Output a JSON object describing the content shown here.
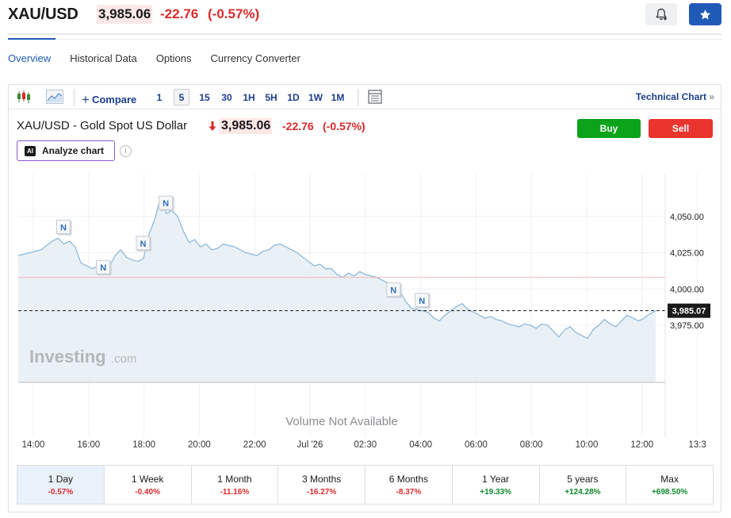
{
  "header": {
    "symbol": "XAU/USD",
    "price": "3,985.06",
    "change": "-22.76",
    "change_pct": "(-0.57%)",
    "alert_icon": "bell-plus-icon",
    "watchlist_icon": "star-icon"
  },
  "tabs": [
    {
      "label": "Overview"
    },
    {
      "label": "Historical Data"
    },
    {
      "label": "Options"
    },
    {
      "label": "Currency Converter"
    }
  ],
  "toolbar": {
    "compare_label": "Compare",
    "timeframes": [
      {
        "label": "1"
      },
      {
        "label": "5"
      },
      {
        "label": "15"
      },
      {
        "label": "30"
      },
      {
        "label": "1H"
      },
      {
        "label": "5H"
      },
      {
        "label": "1D"
      },
      {
        "label": "1W"
      },
      {
        "label": "1M"
      }
    ],
    "active_timeframe": "5",
    "technical_chart_label": "Technical Chart"
  },
  "instrument": {
    "title": "XAU/USD - Gold Spot US Dollar",
    "price": "3,985.06",
    "change": "-22.76",
    "change_pct": "(-0.57%)",
    "buy_label": "Buy",
    "sell_label": "Sell",
    "analyze_label": "Analyze chart",
    "ai_badge": "AI",
    "info_glyph": "i"
  },
  "chart": {
    "watermark_main": "Investing",
    "watermark_suffix": ".com",
    "volume_note": "Volume Not Available",
    "current_price_label": "3,985.07",
    "news_marker_label": "N",
    "colors": {
      "line": "#8fb8dc",
      "fill": "#e6eef5",
      "prev_close": "#f2b5b5",
      "label_bg": "#1a1a1a"
    }
  },
  "chart_data": {
    "type": "area",
    "title": "XAU/USD - Gold Spot US Dollar",
    "xlabel": "",
    "ylabel": "",
    "x_tick_labels": [
      "14:00",
      "16:00",
      "18:00",
      "20:00",
      "22:00",
      "Jul '26",
      "02:30",
      "04:00",
      "06:00",
      "08:00",
      "10:00",
      "12:00",
      "13:3"
    ],
    "y_tick_labels": [
      "4,050.00",
      "4,025.00",
      "4,000.00",
      "3,975.00"
    ],
    "y_ticks": [
      4050,
      4025,
      4000,
      3975
    ],
    "ylim": [
      3940,
      4075
    ],
    "prev_close": 4008,
    "current_value": 3985.07,
    "grid": true,
    "series": [
      {
        "values": [
          4023,
          4024,
          4025,
          4026,
          4027,
          4030,
          4033,
          4035,
          4031,
          4033,
          4029,
          4018,
          4016,
          4014,
          4016,
          4011,
          4015,
          4023,
          4027,
          4022,
          4020,
          4019,
          4021,
          4038,
          4048,
          4063,
          4052,
          4054,
          4050,
          4040,
          4032,
          4034,
          4029,
          4031,
          4027,
          4028,
          4031,
          4030,
          4029,
          4027,
          4025,
          4024,
          4023,
          4026,
          4027,
          4030,
          4031,
          4029,
          4027,
          4025,
          4022,
          4019,
          4016,
          4017,
          4014,
          4014,
          4010,
          4008,
          4011,
          4009,
          4012,
          4010,
          4009,
          4008,
          4006,
          4004,
          4002,
          3999,
          3992,
          3987,
          3986,
          3985,
          3984,
          3980,
          3978,
          3982,
          3985,
          3988,
          3990,
          3986,
          3984,
          3982,
          3980,
          3981,
          3979,
          3978,
          3976,
          3975,
          3974,
          3976,
          3975,
          3973,
          3976,
          3975,
          3971,
          3967,
          3972,
          3974,
          3970,
          3968,
          3966,
          3972,
          3975,
          3979,
          3976,
          3974,
          3978,
          3982,
          3980,
          3978,
          3980,
          3983,
          3985
        ]
      }
    ]
  },
  "periods": [
    {
      "label": "1 Day",
      "value": "-0.57%",
      "dir": "neg"
    },
    {
      "label": "1 Week",
      "value": "-0.40%",
      "dir": "neg"
    },
    {
      "label": "1 Month",
      "value": "-11.16%",
      "dir": "neg"
    },
    {
      "label": "3 Months",
      "value": "-16.27%",
      "dir": "neg"
    },
    {
      "label": "6 Months",
      "value": "-8.37%",
      "dir": "neg"
    },
    {
      "label": "1 Year",
      "value": "+19.33%",
      "dir": "pos"
    },
    {
      "label": "5 years",
      "value": "+124.28%",
      "dir": "pos"
    },
    {
      "label": "Max",
      "value": "+698.50%",
      "dir": "pos"
    }
  ]
}
